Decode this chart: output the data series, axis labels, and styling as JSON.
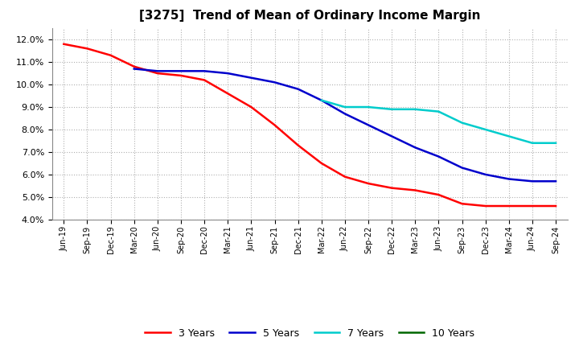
{
  "title": "[3275]  Trend of Mean of Ordinary Income Margin",
  "ylim": [
    0.04,
    0.125
  ],
  "yticks": [
    0.04,
    0.05,
    0.06,
    0.07,
    0.08,
    0.09,
    0.1,
    0.11,
    0.12
  ],
  "background_color": "#ffffff",
  "grid_color": "#b0b0b0",
  "series": {
    "3 Years": {
      "color": "#ff0000",
      "x": [
        "Jun-19",
        "Sep-19",
        "Dec-19",
        "Mar-20",
        "Jun-20",
        "Sep-20",
        "Dec-20",
        "Mar-21",
        "Jun-21",
        "Sep-21",
        "Dec-21",
        "Mar-22",
        "Jun-22",
        "Sep-22",
        "Dec-22",
        "Mar-23",
        "Jun-23",
        "Sep-23",
        "Dec-23",
        "Mar-24",
        "Jun-24",
        "Sep-24"
      ],
      "y": [
        0.118,
        0.116,
        0.113,
        0.108,
        0.105,
        0.104,
        0.102,
        0.096,
        0.09,
        0.082,
        0.073,
        0.065,
        0.059,
        0.056,
        0.054,
        0.053,
        0.051,
        0.047,
        0.046,
        0.046,
        0.046,
        0.046
      ]
    },
    "5 Years": {
      "color": "#0000cc",
      "x": [
        "Mar-20",
        "Jun-20",
        "Sep-20",
        "Dec-20",
        "Mar-21",
        "Jun-21",
        "Sep-21",
        "Dec-21",
        "Mar-22",
        "Jun-22",
        "Sep-22",
        "Dec-22",
        "Mar-23",
        "Jun-23",
        "Sep-23",
        "Dec-23",
        "Mar-24",
        "Jun-24",
        "Sep-24"
      ],
      "y": [
        0.107,
        0.106,
        0.106,
        0.106,
        0.105,
        0.103,
        0.101,
        0.098,
        0.093,
        0.087,
        0.082,
        0.077,
        0.072,
        0.068,
        0.063,
        0.06,
        0.058,
        0.057,
        0.057
      ]
    },
    "7 Years": {
      "color": "#00cccc",
      "x": [
        "Mar-22",
        "Jun-22",
        "Sep-22",
        "Dec-22",
        "Mar-23",
        "Jun-23",
        "Sep-23",
        "Dec-23",
        "Mar-24",
        "Jun-24",
        "Sep-24"
      ],
      "y": [
        0.093,
        0.09,
        0.09,
        0.089,
        0.089,
        0.088,
        0.083,
        0.08,
        0.077,
        0.074,
        0.074
      ]
    },
    "10 Years": {
      "color": "#006600",
      "x": [],
      "y": []
    }
  },
  "xtick_labels": [
    "Jun-19",
    "Sep-19",
    "Dec-19",
    "Mar-20",
    "Jun-20",
    "Sep-20",
    "Dec-20",
    "Mar-21",
    "Jun-21",
    "Sep-21",
    "Dec-21",
    "Mar-22",
    "Jun-22",
    "Sep-22",
    "Dec-22",
    "Mar-23",
    "Jun-23",
    "Sep-23",
    "Dec-23",
    "Mar-24",
    "Jun-24",
    "Sep-24"
  ],
  "legend_labels": [
    "3 Years",
    "5 Years",
    "7 Years",
    "10 Years"
  ],
  "legend_colors": [
    "#ff0000",
    "#0000cc",
    "#00cccc",
    "#006600"
  ],
  "linewidth": 1.8
}
